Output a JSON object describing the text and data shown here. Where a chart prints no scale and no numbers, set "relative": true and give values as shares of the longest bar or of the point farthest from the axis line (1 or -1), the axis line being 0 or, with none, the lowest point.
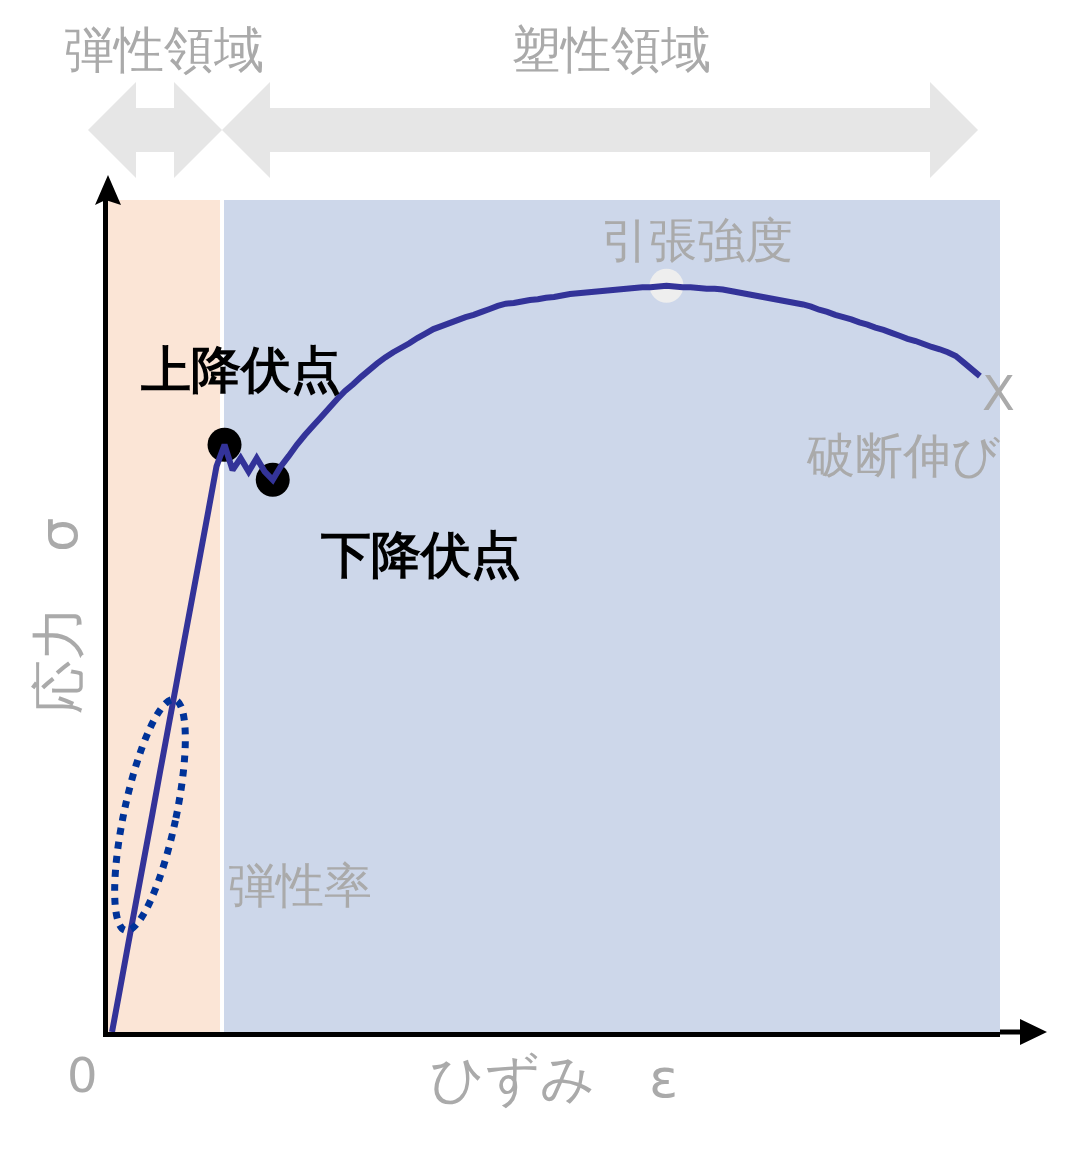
{
  "chart_data": {
    "type": "line",
    "relative": true,
    "xlabel": "ひずみ　ε",
    "ylabel": "応力　σ",
    "tick_labels": false,
    "categories": [
      null,
      null,
      null,
      null,
      null,
      null,
      null,
      null,
      null,
      null,
      null,
      null,
      null,
      null,
      null,
      null,
      null,
      null,
      null,
      null,
      null,
      null,
      null,
      null,
      null,
      null,
      null,
      null,
      null,
      null,
      null,
      null,
      null,
      null,
      null,
      null,
      null,
      null,
      null,
      null,
      null,
      null,
      null,
      null,
      null,
      null,
      null,
      null,
      null,
      null,
      null,
      null,
      null,
      null,
      null,
      null,
      null,
      null,
      null,
      null,
      null,
      null,
      null,
      null,
      null,
      null,
      null,
      null,
      null,
      null,
      null,
      null,
      null,
      null,
      null,
      null,
      null,
      null,
      null,
      null,
      null,
      null,
      null,
      null,
      null,
      null,
      null,
      null,
      null,
      null,
      null,
      null,
      null,
      null,
      null,
      null,
      null,
      null,
      null,
      null,
      null,
      null,
      null,
      null,
      null,
      null,
      null,
      null,
      null
    ],
    "series": [
      {
        "color": "#333399",
        "marker": "none",
        "values": [
          0,
          0.058,
          0.117,
          0.175,
          0.233,
          0.291,
          0.35,
          0.408,
          0.466,
          0.525,
          0.583,
          0.641,
          0.699,
          0.758,
          0.787,
          0.753,
          0.769,
          0.751,
          0.769,
          0.751,
          0.74,
          0.758,
          0.772,
          0.787,
          0.8,
          0.812,
          0.824,
          0.836,
          0.848,
          0.859,
          0.868,
          0.878,
          0.887,
          0.896,
          0.904,
          0.911,
          0.917,
          0.923,
          0.93,
          0.936,
          0.942,
          0.946,
          0.95,
          0.954,
          0.958,
          0.961,
          0.965,
          0.969,
          0.973,
          0.976,
          0.977,
          0.979,
          0.981,
          0.982,
          0.984,
          0.985,
          0.987,
          0.989,
          0.99,
          0.991,
          0.992,
          0.993,
          0.994,
          0.995,
          0.996,
          0.997,
          0.998,
          0.998,
          0.999,
          1,
          0.999,
          0.998,
          0.998,
          0.997,
          0.996,
          0.996,
          0.995,
          0.993,
          0.991,
          0.989,
          0.987,
          0.985,
          0.983,
          0.981,
          0.979,
          0.977,
          0.975,
          0.972,
          0.968,
          0.965,
          0.961,
          0.958,
          0.955,
          0.951,
          0.948,
          0.944,
          0.941,
          0.937,
          0.933,
          0.929,
          0.926,
          0.922,
          0.918,
          0.915,
          0.911,
          0.906,
          0.897,
          0.888,
          0.879
        ]
      }
    ],
    "annotations": [
      "上降伏点",
      "下降伏点",
      {
        "text": "引張強度",
        "y": 1
      },
      "X",
      "破断伸び",
      "弾性率",
      "0",
      "弾性領域",
      "塑性領域"
    ]
  }
}
